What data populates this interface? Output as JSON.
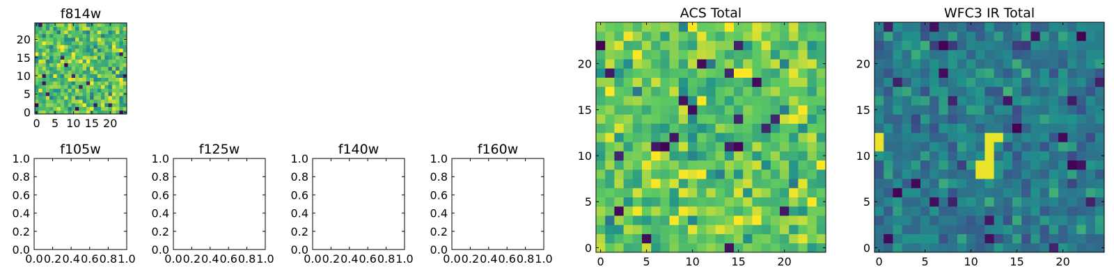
{
  "colormap": {
    "name": "viridis",
    "stops": [
      "#440154",
      "#3b528b",
      "#21918c",
      "#5ec962",
      "#fde725"
    ]
  },
  "chart_data": [
    {
      "id": "f814w",
      "type": "heatmap",
      "title": "f814w",
      "xticks": [
        "0",
        "5",
        "10",
        "15",
        "20"
      ],
      "yticks": [
        "0",
        "5",
        "10",
        "15",
        "20"
      ],
      "xlim": [
        -0.5,
        24.5
      ],
      "ylim": [
        -0.5,
        24.5
      ],
      "grid_size": 25,
      "value_range": [
        0,
        1
      ],
      "values_seed": 814,
      "values_level": 0.72,
      "values_spread": 0.14,
      "values_dark_fraction": 0.03
    },
    {
      "id": "f105w",
      "type": "empty",
      "title": "f105w",
      "xticks": [
        "0.0",
        "0.2",
        "0.4",
        "0.6",
        "0.8",
        "1.0"
      ],
      "yticks": [
        "0.0",
        "0.2",
        "0.4",
        "0.6",
        "0.8",
        "1.0"
      ],
      "xlim": [
        0,
        1
      ],
      "ylim": [
        0,
        1
      ]
    },
    {
      "id": "f125w",
      "type": "empty",
      "title": "f125w",
      "xticks": [
        "0.0",
        "0.2",
        "0.4",
        "0.6",
        "0.8",
        "1.0"
      ],
      "yticks": [
        "0.0",
        "0.2",
        "0.4",
        "0.6",
        "0.8",
        "1.0"
      ],
      "xlim": [
        0,
        1
      ],
      "ylim": [
        0,
        1
      ]
    },
    {
      "id": "f140w",
      "type": "empty",
      "title": "f140w",
      "xticks": [
        "0.0",
        "0.2",
        "0.4",
        "0.6",
        "0.8",
        "1.0"
      ],
      "yticks": [
        "0.0",
        "0.2",
        "0.4",
        "0.6",
        "0.8",
        "1.0"
      ],
      "xlim": [
        0,
        1
      ],
      "ylim": [
        0,
        1
      ]
    },
    {
      "id": "f160w",
      "type": "empty",
      "title": "f160w",
      "xticks": [
        "0.0",
        "0.2",
        "0.4",
        "0.6",
        "0.8",
        "1.0"
      ],
      "yticks": [
        "0.0",
        "0.2",
        "0.4",
        "0.6",
        "0.8",
        "1.0"
      ],
      "xlim": [
        0,
        1
      ],
      "ylim": [
        0,
        1
      ]
    },
    {
      "id": "acs_total",
      "type": "heatmap",
      "title": "ACS Total",
      "xticks": [
        "0",
        "5",
        "10",
        "15",
        "20"
      ],
      "yticks": [
        "0",
        "5",
        "10",
        "15",
        "20"
      ],
      "xlim": [
        -0.5,
        24.5
      ],
      "ylim": [
        -0.5,
        24.5
      ],
      "grid_size": 25,
      "value_range": [
        0,
        1
      ],
      "values_seed": 2024,
      "values_level": 0.74,
      "values_spread": 0.13,
      "values_dark_fraction": 0.03
    },
    {
      "id": "wfc3_ir_total",
      "type": "heatmap",
      "title": "WFC3 IR Total",
      "xticks": [
        "0",
        "5",
        "10",
        "15",
        "20"
      ],
      "yticks": [
        "0",
        "5",
        "10",
        "15",
        "20"
      ],
      "xlim": [
        -0.5,
        24.5
      ],
      "ylim": [
        -0.5,
        24.5
      ],
      "grid_size": 25,
      "value_range": [
        0,
        1
      ],
      "values_seed": 3160,
      "values_level": 0.42,
      "values_spread": 0.09,
      "values_dark_fraction": 0.04,
      "bright_cells": [
        [
          0,
          11
        ],
        [
          0,
          12
        ],
        [
          11,
          8
        ],
        [
          11,
          9
        ],
        [
          12,
          8
        ],
        [
          12,
          9
        ],
        [
          12,
          10
        ],
        [
          12,
          11
        ],
        [
          12,
          12
        ],
        [
          13,
          12
        ]
      ],
      "bright_value": 0.97
    }
  ]
}
